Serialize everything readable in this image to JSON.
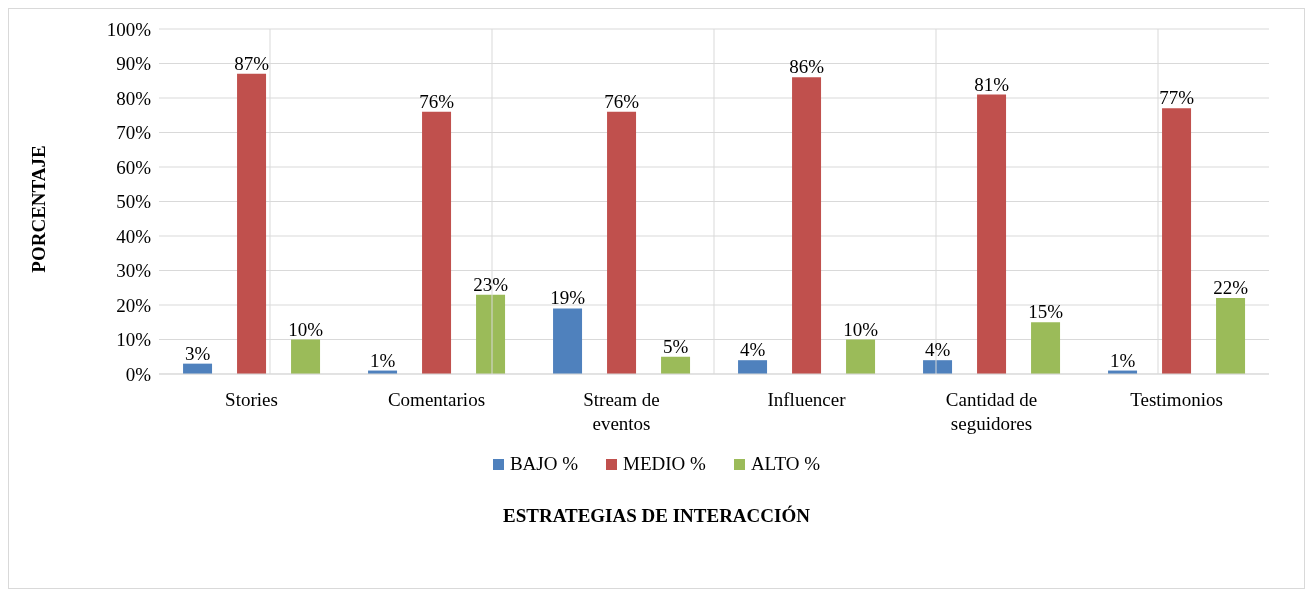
{
  "chart_data": {
    "type": "bar",
    "xlabel": "ESTRATEGIAS DE INTERACCIÓN",
    "ylabel": "PORCENTAJE",
    "categories": [
      "Stories",
      "Comentarios",
      "Stream de eventos",
      "Influencer",
      "Cantidad de seguidores",
      "Testimonios"
    ],
    "series": [
      {
        "name": "BAJO %",
        "color": "#4f81bd",
        "values": [
          3,
          1,
          19,
          4,
          4,
          1
        ],
        "value_labels": [
          "3%",
          "1%",
          "19%",
          "4%",
          "4%",
          "1%"
        ]
      },
      {
        "name": "MEDIO %",
        "color": "#c0504d",
        "values": [
          87,
          76,
          76,
          86,
          81,
          77
        ],
        "value_labels": [
          "87%",
          "76%",
          "76%",
          "86%",
          "81%",
          "77%"
        ]
      },
      {
        "name": "ALTO %",
        "color": "#9bbb59",
        "values": [
          10,
          23,
          5,
          10,
          15,
          22
        ],
        "value_labels": [
          "10%",
          "23%",
          "5%",
          "10%",
          "15%",
          "22%"
        ]
      }
    ],
    "ylim": [
      0,
      100
    ],
    "yticks": [
      {
        "value": 0,
        "label": "0%"
      },
      {
        "value": 10,
        "label": "10%"
      },
      {
        "value": 20,
        "label": "20%"
      },
      {
        "value": 30,
        "label": "30%"
      },
      {
        "value": 40,
        "label": "40%"
      },
      {
        "value": 50,
        "label": "50%"
      },
      {
        "value": 60,
        "label": "60%"
      },
      {
        "value": 70,
        "label": "70%"
      },
      {
        "value": 80,
        "label": "80%"
      },
      {
        "value": 90,
        "label": "90%"
      },
      {
        "value": 100,
        "label": "100%"
      }
    ],
    "grid": true,
    "legend": "bottom"
  }
}
